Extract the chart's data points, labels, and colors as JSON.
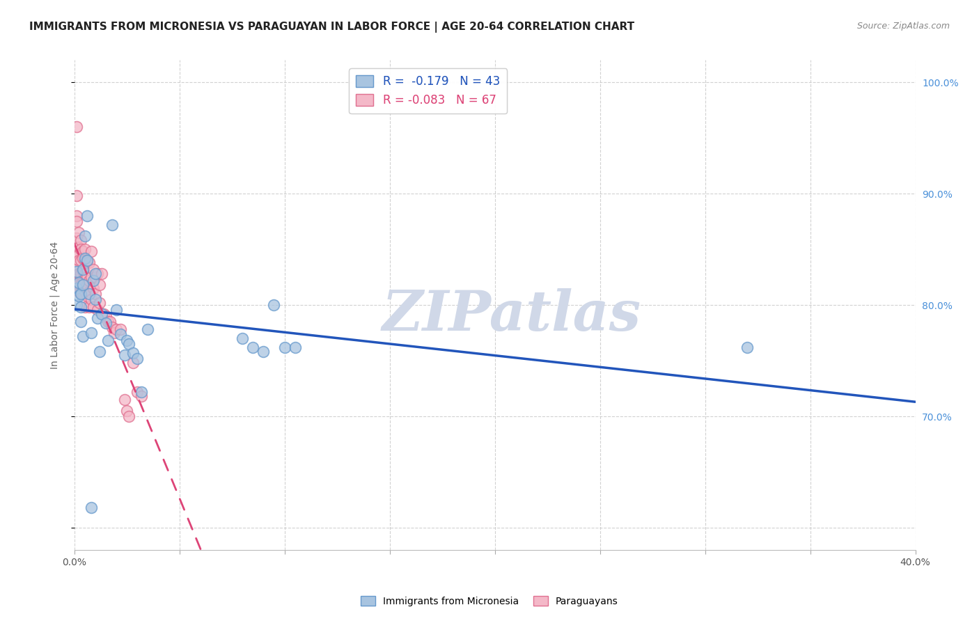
{
  "title": "IMMIGRANTS FROM MICRONESIA VS PARAGUAYAN IN LABOR FORCE | AGE 20-64 CORRELATION CHART",
  "source": "Source: ZipAtlas.com",
  "ylabel": "In Labor Force | Age 20-64",
  "xlim": [
    0.0,
    0.4
  ],
  "ylim": [
    0.58,
    1.02
  ],
  "micronesia_color": "#a8c4e0",
  "paraguayan_color": "#f4b8c8",
  "micronesia_edge": "#6699cc",
  "paraguayan_edge": "#e07090",
  "trend_blue": "#2255bb",
  "trend_pink": "#dd4477",
  "r_micronesia": -0.179,
  "n_micronesia": 43,
  "r_paraguayan": -0.083,
  "n_paraguayan": 67,
  "micronesia_x": [
    0.001,
    0.001,
    0.001,
    0.002,
    0.002,
    0.003,
    0.003,
    0.003,
    0.004,
    0.004,
    0.004,
    0.005,
    0.005,
    0.006,
    0.006,
    0.007,
    0.008,
    0.009,
    0.01,
    0.01,
    0.011,
    0.012,
    0.013,
    0.015,
    0.016,
    0.018,
    0.02,
    0.022,
    0.024,
    0.025,
    0.026,
    0.028,
    0.03,
    0.032,
    0.035,
    0.08,
    0.085,
    0.09,
    0.095,
    0.1,
    0.105,
    0.32,
    0.008
  ],
  "micronesia_y": [
    0.8,
    0.815,
    0.83,
    0.808,
    0.82,
    0.798,
    0.81,
    0.785,
    0.832,
    0.818,
    0.772,
    0.842,
    0.862,
    0.84,
    0.88,
    0.81,
    0.775,
    0.822,
    0.805,
    0.828,
    0.788,
    0.758,
    0.792,
    0.784,
    0.768,
    0.872,
    0.796,
    0.774,
    0.755,
    0.768,
    0.765,
    0.757,
    0.752,
    0.722,
    0.778,
    0.77,
    0.762,
    0.758,
    0.8,
    0.762,
    0.762,
    0.762,
    0.618
  ],
  "paraguayan_x": [
    0.001,
    0.001,
    0.001,
    0.001,
    0.001,
    0.001,
    0.001,
    0.001,
    0.001,
    0.002,
    0.002,
    0.002,
    0.002,
    0.002,
    0.002,
    0.002,
    0.003,
    0.003,
    0.003,
    0.003,
    0.003,
    0.003,
    0.004,
    0.004,
    0.004,
    0.004,
    0.004,
    0.005,
    0.005,
    0.005,
    0.005,
    0.005,
    0.006,
    0.006,
    0.006,
    0.006,
    0.007,
    0.007,
    0.007,
    0.007,
    0.008,
    0.008,
    0.008,
    0.009,
    0.009,
    0.009,
    0.01,
    0.01,
    0.011,
    0.011,
    0.012,
    0.012,
    0.013,
    0.014,
    0.015,
    0.016,
    0.017,
    0.018,
    0.019,
    0.02,
    0.022,
    0.024,
    0.025,
    0.026,
    0.028,
    0.03,
    0.032
  ],
  "paraguayan_y": [
    0.96,
    0.898,
    0.88,
    0.86,
    0.875,
    0.848,
    0.832,
    0.82,
    0.815,
    0.865,
    0.852,
    0.845,
    0.84,
    0.828,
    0.818,
    0.812,
    0.858,
    0.85,
    0.84,
    0.828,
    0.818,
    0.812,
    0.848,
    0.842,
    0.83,
    0.82,
    0.81,
    0.85,
    0.84,
    0.828,
    0.812,
    0.798,
    0.838,
    0.825,
    0.818,
    0.808,
    0.838,
    0.822,
    0.812,
    0.798,
    0.848,
    0.825,
    0.805,
    0.832,
    0.815,
    0.798,
    0.825,
    0.81,
    0.828,
    0.796,
    0.818,
    0.802,
    0.828,
    0.792,
    0.79,
    0.785,
    0.785,
    0.78,
    0.775,
    0.778,
    0.778,
    0.715,
    0.705,
    0.7,
    0.748,
    0.722,
    0.718
  ],
  "watermark_text": "ZIPatlas",
  "watermark_color": "#d0d8e8",
  "background_color": "#ffffff",
  "grid_color": "#cccccc",
  "title_fontsize": 11,
  "tick_color_right": "#4a90d9",
  "axis_label_color": "#666666"
}
